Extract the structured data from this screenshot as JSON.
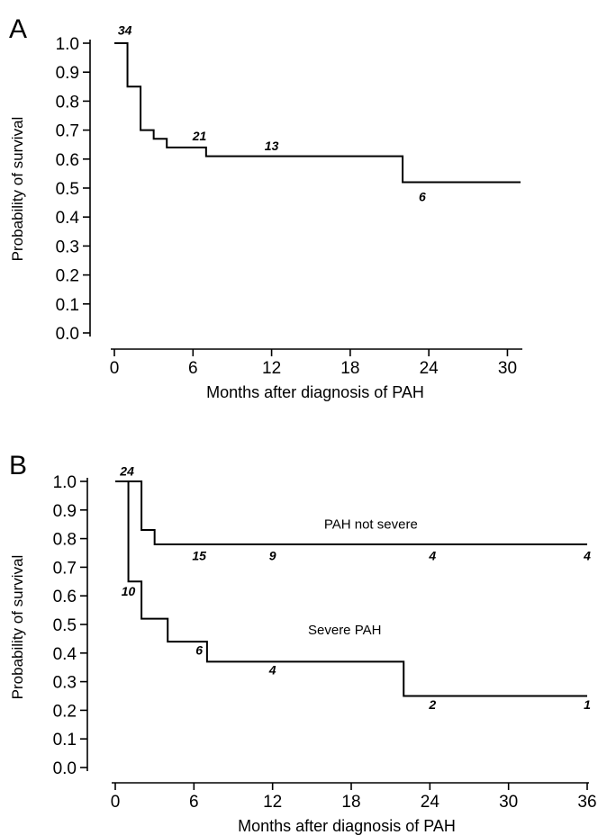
{
  "chart_data": [
    {
      "type": "line",
      "panel": "A",
      "xlabel": "Months after diagnosis of PAH",
      "ylabel": "Probability of survival",
      "xlim": [
        0,
        31
      ],
      "ylim": [
        0,
        1.0
      ],
      "x_ticks": [
        0,
        6,
        12,
        18,
        24,
        30
      ],
      "y_ticks": [
        0.0,
        0.1,
        0.2,
        0.3,
        0.4,
        0.5,
        0.6,
        0.7,
        0.8,
        0.9,
        1.0
      ],
      "series": [
        {
          "step": [
            [
              0,
              1.0
            ],
            [
              1,
              0.85
            ],
            [
              2,
              0.7
            ],
            [
              3,
              0.67
            ],
            [
              4,
              0.64
            ],
            [
              7,
              0.61
            ],
            [
              22,
              0.52
            ],
            [
              31,
              0.52
            ]
          ]
        }
      ],
      "annotations": [
        {
          "text": "34",
          "x": 0.8,
          "y": 1.03
        },
        {
          "text": "21",
          "x": 6.5,
          "y": 0.665
        },
        {
          "text": "13",
          "x": 12.0,
          "y": 0.63
        },
        {
          "text": "6",
          "x": 23.5,
          "y": 0.455
        }
      ]
    },
    {
      "type": "line",
      "panel": "B",
      "xlabel": "Months after diagnosis of PAH",
      "ylabel": "Probability of survival",
      "xlim": [
        0,
        36
      ],
      "ylim": [
        0,
        1.0
      ],
      "x_ticks": [
        0,
        6,
        12,
        18,
        24,
        30,
        36
      ],
      "y_ticks": [
        0.0,
        0.1,
        0.2,
        0.3,
        0.4,
        0.5,
        0.6,
        0.7,
        0.8,
        0.9,
        1.0
      ],
      "series": [
        {
          "name": "PAH not severe",
          "step": [
            [
              0,
              1.0
            ],
            [
              2,
              0.83
            ],
            [
              3,
              0.78
            ],
            [
              36,
              0.78
            ]
          ]
        },
        {
          "name": "Severe PAH",
          "step": [
            [
              0,
              1.0
            ],
            [
              1,
              0.65
            ],
            [
              2,
              0.52
            ],
            [
              4,
              0.44
            ],
            [
              7,
              0.37
            ],
            [
              22,
              0.25
            ],
            [
              36,
              0.25
            ]
          ]
        }
      ],
      "series_label_positions": [
        {
          "x": 19.5,
          "y": 0.835
        },
        {
          "x": 17.5,
          "y": 0.465
        }
      ],
      "annotations": [
        {
          "text": "24",
          "x": 0.9,
          "y": 1.02
        },
        {
          "text": "15",
          "x": 6.4,
          "y": 0.725
        },
        {
          "text": "9",
          "x": 12.0,
          "y": 0.725
        },
        {
          "text": "4",
          "x": 24.2,
          "y": 0.725
        },
        {
          "text": "4",
          "x": 36.0,
          "y": 0.725
        },
        {
          "text": "10",
          "x": 1.0,
          "y": 0.6
        },
        {
          "text": "6",
          "x": 6.4,
          "y": 0.395
        },
        {
          "text": "4",
          "x": 12.0,
          "y": 0.325
        },
        {
          "text": "2",
          "x": 24.2,
          "y": 0.205
        },
        {
          "text": "1",
          "x": 36.0,
          "y": 0.205
        }
      ]
    }
  ]
}
